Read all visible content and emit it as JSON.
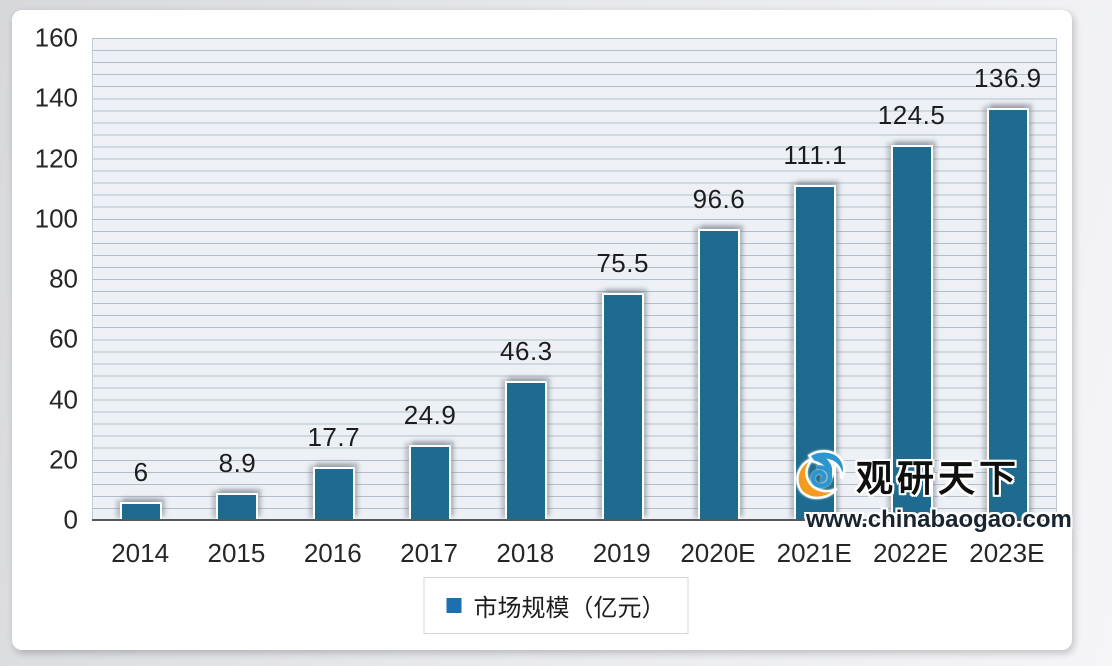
{
  "chart_data": {
    "type": "bar",
    "categories": [
      "2014",
      "2015",
      "2016",
      "2017",
      "2018",
      "2019",
      "2020E",
      "2021E",
      "2022E",
      "2023E"
    ],
    "values": [
      6,
      8.9,
      17.7,
      24.9,
      46.3,
      75.5,
      96.6,
      111.1,
      124.5,
      136.9
    ],
    "value_labels": [
      "6",
      "8.9",
      "17.7",
      "24.9",
      "46.3",
      "75.5",
      "96.6",
      "111.1",
      "124.5",
      "136.9"
    ],
    "title": "",
    "xlabel": "",
    "ylabel": "",
    "ylim": [
      0,
      160
    ],
    "y_ticks": [
      0,
      20,
      40,
      60,
      80,
      100,
      120,
      140,
      160
    ],
    "minor_grid_step": 4,
    "grid": true,
    "bar_color": "#1f6b8f",
    "legend": {
      "label": "市场规模（亿元）",
      "position": "bottom",
      "swatch_color": "#1d6fae"
    }
  },
  "watermark": {
    "brand": "观研天下",
    "url": "www.chinabaogao.com",
    "logo_colors": {
      "blue": "#2e96ce",
      "orange": "#f49a1e"
    }
  }
}
